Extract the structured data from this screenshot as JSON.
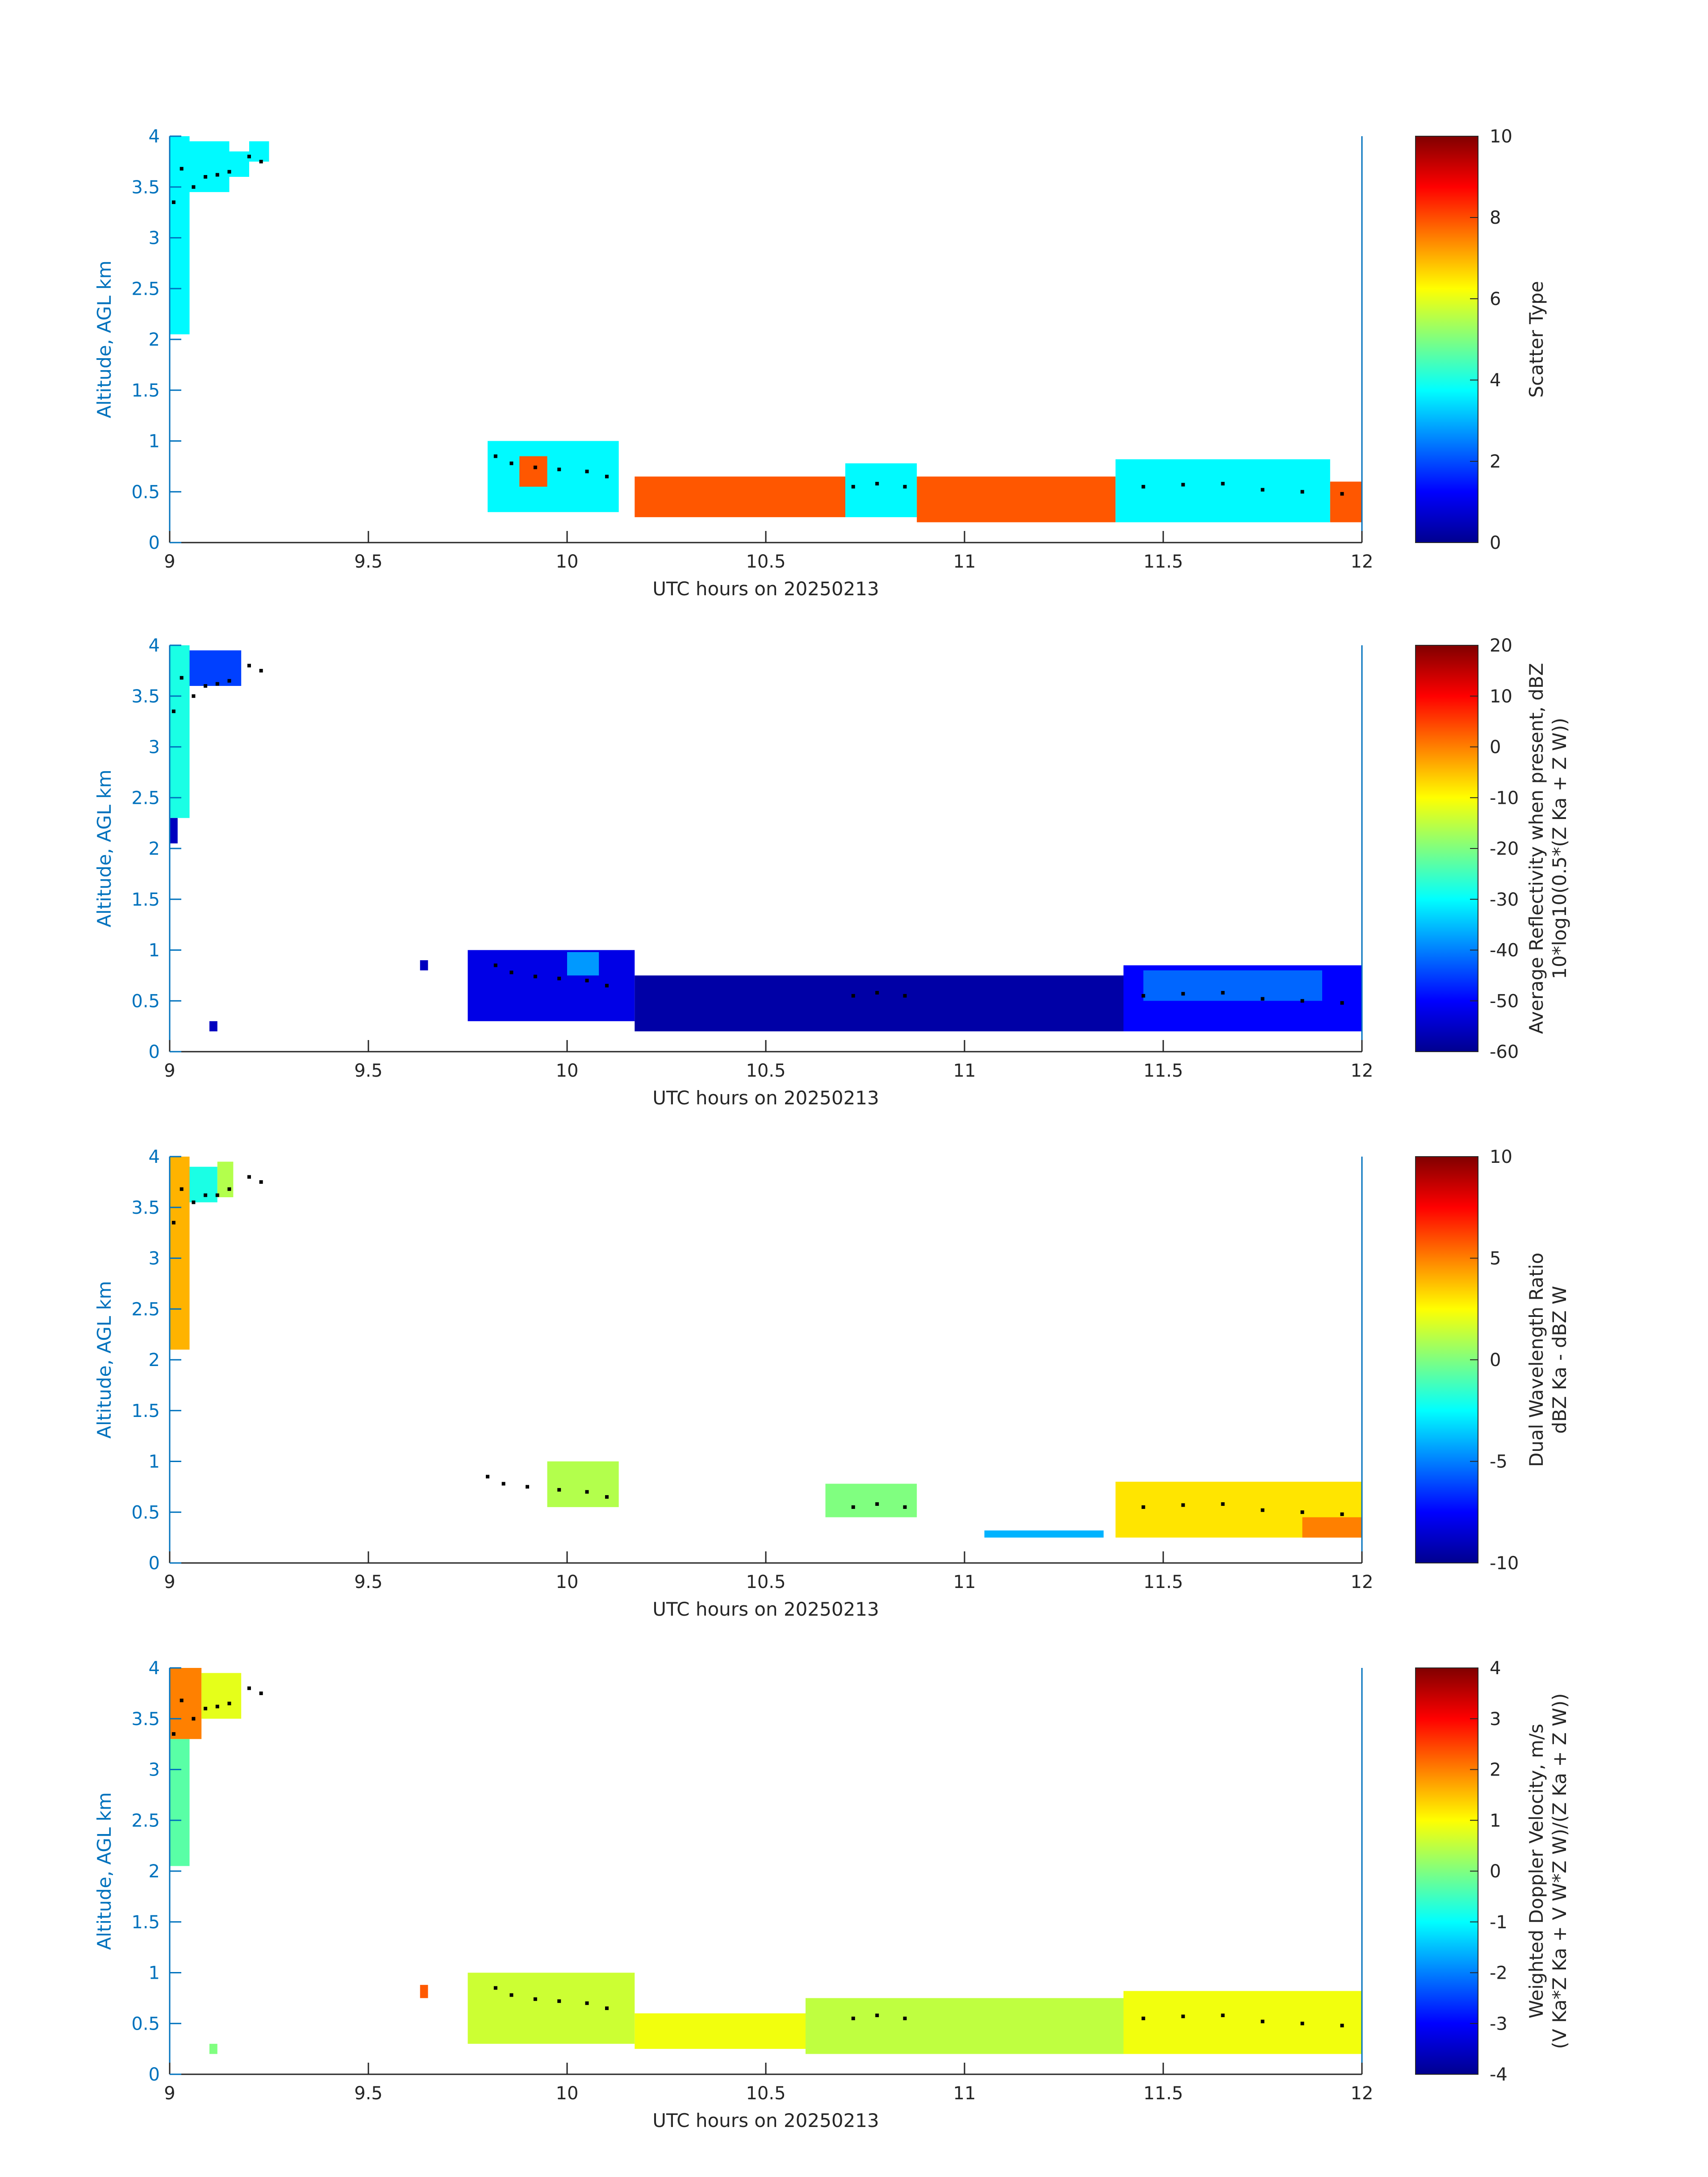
{
  "colors": {
    "axis": "#0072bd",
    "text": "#262626",
    "marker": "#000000",
    "background": "#ffffff"
  },
  "chart_data": [
    {
      "type": "heatmap",
      "panel": "scatter-type",
      "colormap": "jet",
      "xlabel": "UTC hours on 20250213",
      "ylabel": "Altitude, AGL km",
      "xlim": [
        9,
        12
      ],
      "ylim": [
        0,
        4
      ],
      "x_ticks": [
        "9",
        "9.5",
        "10",
        "10.5",
        "11",
        "11.5",
        "12"
      ],
      "y_ticks": [
        "0",
        "0.5",
        "1",
        "1.5",
        "2",
        "2.5",
        "3",
        "3.5",
        "4"
      ],
      "colorbar": {
        "label": [
          "Scatter Type"
        ],
        "clim": [
          0,
          10
        ],
        "ticks": [
          "0",
          "2",
          "4",
          "6",
          "8",
          "10"
        ]
      },
      "regions": [
        {
          "x": [
            9.0,
            9.05
          ],
          "y": [
            2.05,
            4.0
          ],
          "value": 3.7
        },
        {
          "x": [
            9.05,
            9.15
          ],
          "y": [
            3.45,
            3.95
          ],
          "value": 3.7
        },
        {
          "x": [
            9.15,
            9.2
          ],
          "y": [
            3.6,
            3.85
          ],
          "value": 3.7
        },
        {
          "x": [
            9.2,
            9.25
          ],
          "y": [
            3.75,
            3.95
          ],
          "value": 3.7
        },
        {
          "x": [
            9.8,
            10.13
          ],
          "y": [
            0.3,
            1.0
          ],
          "value": 3.7
        },
        {
          "x": [
            9.88,
            9.95
          ],
          "y": [
            0.55,
            0.85
          ],
          "value": 7.9
        },
        {
          "x": [
            10.17,
            10.7
          ],
          "y": [
            0.25,
            0.65
          ],
          "value": 7.9
        },
        {
          "x": [
            10.7,
            10.88
          ],
          "y": [
            0.25,
            0.78
          ],
          "value": 3.7
        },
        {
          "x": [
            10.88,
            11.38
          ],
          "y": [
            0.2,
            0.65
          ],
          "value": 7.9
        },
        {
          "x": [
            11.38,
            11.92
          ],
          "y": [
            0.2,
            0.82
          ],
          "value": 3.7
        },
        {
          "x": [
            11.92,
            12.0
          ],
          "y": [
            0.2,
            0.6
          ],
          "value": 7.9
        }
      ],
      "markers": [
        [
          9.01,
          3.35
        ],
        [
          9.03,
          3.68
        ],
        [
          9.06,
          3.5
        ],
        [
          9.09,
          3.6
        ],
        [
          9.12,
          3.62
        ],
        [
          9.15,
          3.65
        ],
        [
          9.2,
          3.8
        ],
        [
          9.23,
          3.75
        ],
        [
          9.82,
          0.85
        ],
        [
          9.86,
          0.78
        ],
        [
          9.92,
          0.74
        ],
        [
          9.98,
          0.72
        ],
        [
          10.05,
          0.7
        ],
        [
          10.1,
          0.65
        ],
        [
          10.72,
          0.55
        ],
        [
          10.78,
          0.58
        ],
        [
          10.85,
          0.55
        ],
        [
          11.45,
          0.55
        ],
        [
          11.55,
          0.57
        ],
        [
          11.65,
          0.58
        ],
        [
          11.75,
          0.52
        ],
        [
          11.85,
          0.5
        ],
        [
          11.95,
          0.48
        ]
      ]
    },
    {
      "type": "heatmap",
      "panel": "reflectivity",
      "colormap": "jet",
      "xlabel": "UTC hours on 20250213",
      "ylabel": "Altitude, AGL km",
      "xlim": [
        9,
        12
      ],
      "ylim": [
        0,
        4
      ],
      "x_ticks": [
        "9",
        "9.5",
        "10",
        "10.5",
        "11",
        "11.5",
        "12"
      ],
      "y_ticks": [
        "0",
        "0.5",
        "1",
        "1.5",
        "2",
        "2.5",
        "3",
        "3.5",
        "4"
      ],
      "colorbar": {
        "label": [
          "Average Reflectivity when present, dBZ",
          "10*log10(0.5*(Z Ka + Z W))"
        ],
        "clim": [
          -60,
          20
        ],
        "ticks": [
          "-60",
          "-50",
          "-40",
          "-30",
          "-20",
          "-10",
          "0",
          "10",
          "20"
        ]
      },
      "regions": [
        {
          "x": [
            9.0,
            9.05
          ],
          "y": [
            2.3,
            4.0
          ],
          "value": -28
        },
        {
          "x": [
            9.0,
            9.02
          ],
          "y": [
            2.05,
            2.3
          ],
          "value": -55
        },
        {
          "x": [
            9.05,
            9.18
          ],
          "y": [
            3.6,
            3.95
          ],
          "value": -45
        },
        {
          "x": [
            9.1,
            9.12
          ],
          "y": [
            0.2,
            0.3
          ],
          "value": -55
        },
        {
          "x": [
            9.63,
            9.65
          ],
          "y": [
            0.8,
            0.9
          ],
          "value": -55
        },
        {
          "x": [
            9.75,
            10.17
          ],
          "y": [
            0.3,
            1.0
          ],
          "value": -52
        },
        {
          "x": [
            10.0,
            10.08
          ],
          "y": [
            0.75,
            0.98
          ],
          "value": -38
        },
        {
          "x": [
            10.17,
            11.4
          ],
          "y": [
            0.2,
            0.75
          ],
          "value": -57
        },
        {
          "x": [
            11.4,
            12.0
          ],
          "y": [
            0.2,
            0.85
          ],
          "value": -50
        },
        {
          "x": [
            11.45,
            11.9
          ],
          "y": [
            0.5,
            0.8
          ],
          "value": -42
        }
      ],
      "markers": [
        [
          9.01,
          3.35
        ],
        [
          9.03,
          3.68
        ],
        [
          9.06,
          3.5
        ],
        [
          9.09,
          3.6
        ],
        [
          9.12,
          3.62
        ],
        [
          9.15,
          3.65
        ],
        [
          9.2,
          3.8
        ],
        [
          9.23,
          3.75
        ],
        [
          9.82,
          0.85
        ],
        [
          9.86,
          0.78
        ],
        [
          9.92,
          0.74
        ],
        [
          9.98,
          0.72
        ],
        [
          10.05,
          0.7
        ],
        [
          10.1,
          0.65
        ],
        [
          10.72,
          0.55
        ],
        [
          10.78,
          0.58
        ],
        [
          10.85,
          0.55
        ],
        [
          11.45,
          0.55
        ],
        [
          11.55,
          0.57
        ],
        [
          11.65,
          0.58
        ],
        [
          11.75,
          0.52
        ],
        [
          11.85,
          0.5
        ],
        [
          11.95,
          0.48
        ]
      ]
    },
    {
      "type": "heatmap",
      "panel": "dual-wavelength-ratio",
      "colormap": "jet",
      "xlabel": "UTC hours on 20250213",
      "ylabel": "Altitude, AGL km",
      "xlim": [
        9,
        12
      ],
      "ylim": [
        0,
        4
      ],
      "x_ticks": [
        "9",
        "9.5",
        "10",
        "10.5",
        "11",
        "11.5",
        "12"
      ],
      "y_ticks": [
        "0",
        "0.5",
        "1",
        "1.5",
        "2",
        "2.5",
        "3",
        "3.5",
        "4"
      ],
      "colorbar": {
        "label": [
          "Dual Wavelength Ratio",
          "dBZ Ka - dBZ W"
        ],
        "clim": [
          -10,
          10
        ],
        "ticks": [
          "-10",
          "-5",
          "0",
          "5",
          "10"
        ]
      },
      "regions": [
        {
          "x": [
            9.0,
            9.05
          ],
          "y": [
            2.1,
            4.0
          ],
          "value": 4
        },
        {
          "x": [
            9.05,
            9.12
          ],
          "y": [
            3.55,
            3.9
          ],
          "value": -2
        },
        {
          "x": [
            9.12,
            9.16
          ],
          "y": [
            3.6,
            3.95
          ],
          "value": 1
        },
        {
          "x": [
            9.95,
            10.13
          ],
          "y": [
            0.55,
            1.0
          ],
          "value": 1
        },
        {
          "x": [
            10.65,
            10.88
          ],
          "y": [
            0.45,
            0.78
          ],
          "value": 0
        },
        {
          "x": [
            11.05,
            11.35
          ],
          "y": [
            0.25,
            0.32
          ],
          "value": -4
        },
        {
          "x": [
            11.38,
            12.0
          ],
          "y": [
            0.25,
            0.8
          ],
          "value": 3
        },
        {
          "x": [
            11.85,
            12.0
          ],
          "y": [
            0.25,
            0.45
          ],
          "value": 5
        }
      ],
      "markers": [
        [
          9.01,
          3.35
        ],
        [
          9.03,
          3.68
        ],
        [
          9.06,
          3.55
        ],
        [
          9.09,
          3.62
        ],
        [
          9.12,
          3.62
        ],
        [
          9.15,
          3.68
        ],
        [
          9.2,
          3.8
        ],
        [
          9.23,
          3.75
        ],
        [
          9.8,
          0.85
        ],
        [
          9.84,
          0.78
        ],
        [
          9.9,
          0.75
        ],
        [
          9.98,
          0.72
        ],
        [
          10.05,
          0.7
        ],
        [
          10.1,
          0.65
        ],
        [
          10.72,
          0.55
        ],
        [
          10.78,
          0.58
        ],
        [
          10.85,
          0.55
        ],
        [
          11.45,
          0.55
        ],
        [
          11.55,
          0.57
        ],
        [
          11.65,
          0.58
        ],
        [
          11.75,
          0.52
        ],
        [
          11.85,
          0.5
        ],
        [
          11.95,
          0.48
        ]
      ]
    },
    {
      "type": "heatmap",
      "panel": "doppler-velocity",
      "colormap": "jet",
      "xlabel": "UTC hours on 20250213",
      "ylabel": "Altitude, AGL km",
      "xlim": [
        9,
        12
      ],
      "ylim": [
        0,
        4
      ],
      "x_ticks": [
        "9",
        "9.5",
        "10",
        "10.5",
        "11",
        "11.5",
        "12"
      ],
      "y_ticks": [
        "0",
        "0.5",
        "1",
        "1.5",
        "2",
        "2.5",
        "3",
        "3.5",
        "4"
      ],
      "colorbar": {
        "label": [
          "Weighted Doppler Velocity, m/s",
          "(V Ka*Z Ka + V W*Z W)/(Z Ka + Z W))"
        ],
        "clim": [
          -4,
          4
        ],
        "ticks": [
          "-4",
          "-3",
          "-2",
          "-1",
          "0",
          "1",
          "2",
          "3",
          "4"
        ]
      },
      "regions": [
        {
          "x": [
            9.0,
            9.05
          ],
          "y": [
            2.05,
            3.3
          ],
          "value": -0.3
        },
        {
          "x": [
            9.0,
            9.08
          ],
          "y": [
            3.3,
            4.0
          ],
          "value": 2
        },
        {
          "x": [
            9.08,
            9.18
          ],
          "y": [
            3.5,
            3.95
          ],
          "value": 0.8
        },
        {
          "x": [
            9.1,
            9.12
          ],
          "y": [
            0.2,
            0.3
          ],
          "value": 0
        },
        {
          "x": [
            9.63,
            9.65
          ],
          "y": [
            0.75,
            0.88
          ],
          "value": 2.3
        },
        {
          "x": [
            9.75,
            10.17
          ],
          "y": [
            0.3,
            1.0
          ],
          "value": 0.6
        },
        {
          "x": [
            10.17,
            10.6
          ],
          "y": [
            0.25,
            0.6
          ],
          "value": 0.9
        },
        {
          "x": [
            10.6,
            11.4
          ],
          "y": [
            0.2,
            0.75
          ],
          "value": 0.5
        },
        {
          "x": [
            11.4,
            12.0
          ],
          "y": [
            0.2,
            0.82
          ],
          "value": 0.9
        }
      ],
      "markers": [
        [
          9.01,
          3.35
        ],
        [
          9.03,
          3.68
        ],
        [
          9.06,
          3.5
        ],
        [
          9.09,
          3.6
        ],
        [
          9.12,
          3.62
        ],
        [
          9.15,
          3.65
        ],
        [
          9.2,
          3.8
        ],
        [
          9.23,
          3.75
        ],
        [
          9.82,
          0.85
        ],
        [
          9.86,
          0.78
        ],
        [
          9.92,
          0.74
        ],
        [
          9.98,
          0.72
        ],
        [
          10.05,
          0.7
        ],
        [
          10.1,
          0.65
        ],
        [
          10.72,
          0.55
        ],
        [
          10.78,
          0.58
        ],
        [
          10.85,
          0.55
        ],
        [
          11.45,
          0.55
        ],
        [
          11.55,
          0.57
        ],
        [
          11.65,
          0.58
        ],
        [
          11.75,
          0.52
        ],
        [
          11.85,
          0.5
        ],
        [
          11.95,
          0.48
        ]
      ]
    }
  ]
}
